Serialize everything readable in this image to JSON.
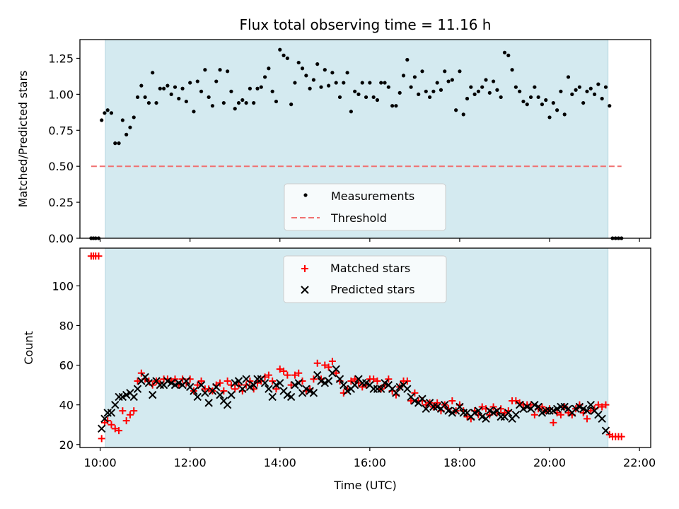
{
  "chart_data": [
    {
      "type": "scatter",
      "title": "Flux total observing time = 11.16 h",
      "xlabel": "",
      "ylabel": "Matched/Predicted stars",
      "xlim": [
        "09:33",
        "22:15"
      ],
      "ylim": [
        0,
        1.38
      ],
      "grid": false,
      "legend_position": "lower-center",
      "y_ticks": [
        "0.00",
        "0.25",
        "0.50",
        "0.75",
        "1.00",
        "1.25"
      ],
      "x_ticks": [
        "10:00",
        "12:00",
        "14:00",
        "16:00",
        "18:00",
        "20:00",
        "22:00"
      ],
      "shaded_span": [
        "10:07",
        "21:18"
      ],
      "shaded_color": "#d4eaf0",
      "series": [
        {
          "name": "Measurements",
          "color": "#000000",
          "marker": "dot",
          "x": [
            "09:48",
            "09:51",
            "09:54",
            "09:58",
            "10:02",
            "10:06",
            "10:10",
            "10:15",
            "10:20",
            "10:25",
            "10:30",
            "10:35",
            "10:40",
            "10:45",
            "10:50",
            "10:55",
            "11:00",
            "11:05",
            "11:10",
            "11:15",
            "11:20",
            "11:25",
            "11:30",
            "11:35",
            "11:40",
            "11:45",
            "11:50",
            "11:55",
            "12:00",
            "12:05",
            "12:10",
            "12:15",
            "12:20",
            "12:25",
            "12:30",
            "12:35",
            "12:40",
            "12:45",
            "12:50",
            "12:55",
            "13:00",
            "13:05",
            "13:10",
            "13:15",
            "13:20",
            "13:25",
            "13:30",
            "13:35",
            "13:40",
            "13:45",
            "13:50",
            "13:55",
            "14:00",
            "14:05",
            "14:10",
            "14:15",
            "14:20",
            "14:25",
            "14:30",
            "14:35",
            "14:40",
            "14:45",
            "14:50",
            "14:55",
            "15:00",
            "15:05",
            "15:10",
            "15:15",
            "15:20",
            "15:25",
            "15:30",
            "15:35",
            "15:40",
            "15:45",
            "15:50",
            "15:55",
            "16:00",
            "16:05",
            "16:10",
            "16:15",
            "16:20",
            "16:25",
            "16:30",
            "16:35",
            "16:40",
            "16:45",
            "16:50",
            "16:55",
            "17:00",
            "17:05",
            "17:10",
            "17:15",
            "17:20",
            "17:25",
            "17:30",
            "17:35",
            "17:40",
            "17:45",
            "17:50",
            "17:55",
            "18:00",
            "18:05",
            "18:10",
            "18:15",
            "18:20",
            "18:25",
            "18:30",
            "18:35",
            "18:40",
            "18:45",
            "18:50",
            "18:55",
            "19:00",
            "19:05",
            "19:10",
            "19:15",
            "19:20",
            "19:25",
            "19:30",
            "19:35",
            "19:40",
            "19:45",
            "19:50",
            "19:55",
            "20:00",
            "20:05",
            "20:10",
            "20:15",
            "20:20",
            "20:25",
            "20:30",
            "20:35",
            "20:40",
            "20:45",
            "20:50",
            "20:55",
            "21:00",
            "21:05",
            "21:10",
            "21:15",
            "21:20",
            "21:24",
            "21:28",
            "21:32",
            "21:36"
          ],
          "y": [
            0,
            0,
            0,
            0,
            0.82,
            0.87,
            0.89,
            0.87,
            0.66,
            0.66,
            0.82,
            0.72,
            0.77,
            0.84,
            0.98,
            1.06,
            0.98,
            0.94,
            1.15,
            0.94,
            1.04,
            1.04,
            1.06,
            1.0,
            1.05,
            0.97,
            1.04,
            0.95,
            1.08,
            0.88,
            1.09,
            1.02,
            1.17,
            0.98,
            0.92,
            1.09,
            1.17,
            0.94,
            1.16,
            1.02,
            0.9,
            0.94,
            0.96,
            0.94,
            1.04,
            0.94,
            1.04,
            1.05,
            1.12,
            1.18,
            1.02,
            0.95,
            1.31,
            1.27,
            1.25,
            0.93,
            1.08,
            1.22,
            1.18,
            1.13,
            1.04,
            1.1,
            1.21,
            1.05,
            1.17,
            1.06,
            1.15,
            1.08,
            0.98,
            1.08,
            1.15,
            0.88,
            1.02,
            1.0,
            1.08,
            0.98,
            1.08,
            0.98,
            0.96,
            1.08,
            1.08,
            1.05,
            0.92,
            0.92,
            1.01,
            1.13,
            1.24,
            1.05,
            1.12,
            1.0,
            1.16,
            1.02,
            0.98,
            1.02,
            1.08,
            1.03,
            1.16,
            1.09,
            1.1,
            0.89,
            1.16,
            0.86,
            0.97,
            1.05,
            1.0,
            1.02,
            1.05,
            1.1,
            1.01,
            1.09,
            1.03,
            0.98,
            1.29,
            1.27,
            1.17,
            1.05,
            1.02,
            0.95,
            0.93,
            0.98,
            1.05,
            0.98,
            0.93,
            0.96,
            0.84,
            0.94,
            0.89,
            1.02,
            0.86,
            1.12,
            1.0,
            1.03,
            1.05,
            0.94,
            1.02,
            1.04,
            1.0,
            1.07,
            0.97,
            1.05,
            0.92,
            0,
            0,
            0,
            0
          ]
        },
        {
          "name": "Threshold",
          "color": "#f07070",
          "style": "dashed",
          "x": [
            "09:48",
            "21:36"
          ],
          "y": [
            0.5,
            0.5
          ]
        }
      ]
    },
    {
      "type": "scatter",
      "title": "",
      "xlabel": "Time (UTC)",
      "ylabel": "Count",
      "xlim": [
        "09:33",
        "22:15"
      ],
      "ylim": [
        18.5,
        119
      ],
      "grid": false,
      "legend_position": "top-center",
      "y_ticks": [
        "20",
        "40",
        "60",
        "80",
        "100"
      ],
      "x_ticks": [
        "10:00",
        "12:00",
        "14:00",
        "16:00",
        "18:00",
        "20:00",
        "22:00"
      ],
      "shaded_span": [
        "10:07",
        "21:18"
      ],
      "shaded_color": "#d4eaf0",
      "series": [
        {
          "name": "Matched stars",
          "color": "#ff0000",
          "marker": "plus",
          "x": [
            "09:48",
            "09:51",
            "09:54",
            "09:58",
            "10:02",
            "10:06",
            "10:10",
            "10:15",
            "10:20",
            "10:25",
            "10:30",
            "10:35",
            "10:40",
            "10:45",
            "10:50",
            "10:55",
            "11:00",
            "11:05",
            "11:10",
            "11:15",
            "11:20",
            "11:25",
            "11:30",
            "11:35",
            "11:40",
            "11:45",
            "11:50",
            "11:55",
            "12:00",
            "12:05",
            "12:10",
            "12:15",
            "12:20",
            "12:25",
            "12:30",
            "12:35",
            "12:40",
            "12:45",
            "12:50",
            "12:55",
            "13:00",
            "13:05",
            "13:10",
            "13:15",
            "13:20",
            "13:25",
            "13:30",
            "13:35",
            "13:40",
            "13:45",
            "13:50",
            "13:55",
            "14:00",
            "14:05",
            "14:10",
            "14:15",
            "14:20",
            "14:25",
            "14:30",
            "14:35",
            "14:40",
            "14:45",
            "14:50",
            "14:55",
            "15:00",
            "15:05",
            "15:10",
            "15:15",
            "15:20",
            "15:25",
            "15:30",
            "15:35",
            "15:40",
            "15:45",
            "15:50",
            "15:55",
            "16:00",
            "16:05",
            "16:10",
            "16:15",
            "16:20",
            "16:25",
            "16:30",
            "16:35",
            "16:40",
            "16:45",
            "16:50",
            "16:55",
            "17:00",
            "17:05",
            "17:10",
            "17:15",
            "17:20",
            "17:25",
            "17:30",
            "17:35",
            "17:40",
            "17:45",
            "17:50",
            "17:55",
            "18:00",
            "18:05",
            "18:10",
            "18:15",
            "18:20",
            "18:25",
            "18:30",
            "18:35",
            "18:40",
            "18:45",
            "18:50",
            "18:55",
            "19:00",
            "19:05",
            "19:10",
            "19:15",
            "19:20",
            "19:25",
            "19:30",
            "19:35",
            "19:40",
            "19:45",
            "19:50",
            "19:55",
            "20:00",
            "20:05",
            "20:10",
            "20:15",
            "20:20",
            "20:25",
            "20:30",
            "20:35",
            "20:40",
            "20:45",
            "20:50",
            "20:55",
            "21:00",
            "21:05",
            "21:10",
            "21:15",
            "21:20",
            "21:24",
            "21:28",
            "21:32",
            "21:36"
          ],
          "y": [
            115,
            115,
            115,
            115,
            23,
            31,
            32,
            30,
            28,
            27,
            37,
            32,
            35,
            37,
            52,
            56,
            53,
            52,
            50,
            52,
            51,
            53,
            53,
            52,
            53,
            50,
            53,
            51,
            53,
            47,
            50,
            52,
            48,
            48,
            47,
            50,
            51,
            47,
            52,
            50,
            48,
            50,
            47,
            50,
            52,
            48,
            51,
            52,
            54,
            55,
            52,
            48,
            58,
            57,
            55,
            50,
            55,
            56,
            52,
            47,
            48,
            53,
            61,
            53,
            60,
            59,
            62,
            56,
            52,
            46,
            48,
            52,
            53,
            51,
            49,
            50,
            53,
            53,
            52,
            48,
            50,
            53,
            47,
            45,
            49,
            52,
            52,
            42,
            46,
            42,
            42,
            40,
            41,
            39,
            41,
            37,
            40,
            38,
            42,
            37,
            40,
            37,
            34,
            33,
            37,
            35,
            39,
            38,
            35,
            39,
            36,
            38,
            36,
            37,
            42,
            42,
            41,
            40,
            40,
            40,
            35,
            38,
            39,
            37,
            38,
            31,
            36,
            35,
            39,
            36,
            35,
            38,
            40,
            36,
            33,
            37,
            38,
            40,
            39,
            40,
            25,
            24,
            24,
            24,
            24
          ]
        },
        {
          "name": "Predicted stars",
          "color": "#000000",
          "marker": "cross",
          "x": [
            "10:02",
            "10:06",
            "10:10",
            "10:15",
            "10:20",
            "10:25",
            "10:30",
            "10:35",
            "10:40",
            "10:45",
            "10:50",
            "10:55",
            "11:00",
            "11:05",
            "11:10",
            "11:15",
            "11:20",
            "11:25",
            "11:30",
            "11:35",
            "11:40",
            "11:45",
            "11:50",
            "11:55",
            "12:00",
            "12:05",
            "12:10",
            "12:15",
            "12:20",
            "12:25",
            "12:30",
            "12:35",
            "12:40",
            "12:45",
            "12:50",
            "12:55",
            "13:00",
            "13:05",
            "13:10",
            "13:15",
            "13:20",
            "13:25",
            "13:30",
            "13:35",
            "13:40",
            "13:45",
            "13:50",
            "13:55",
            "14:00",
            "14:05",
            "14:10",
            "14:15",
            "14:20",
            "14:25",
            "14:30",
            "14:35",
            "14:40",
            "14:45",
            "14:50",
            "14:55",
            "15:00",
            "15:05",
            "15:10",
            "15:15",
            "15:20",
            "15:25",
            "15:30",
            "15:35",
            "15:40",
            "15:45",
            "15:50",
            "15:55",
            "16:00",
            "16:05",
            "16:10",
            "16:15",
            "16:20",
            "16:25",
            "16:30",
            "16:35",
            "16:40",
            "16:45",
            "16:50",
            "16:55",
            "17:00",
            "17:05",
            "17:10",
            "17:15",
            "17:20",
            "17:25",
            "17:30",
            "17:35",
            "17:40",
            "17:45",
            "17:50",
            "17:55",
            "18:00",
            "18:05",
            "18:10",
            "18:15",
            "18:20",
            "18:25",
            "18:30",
            "18:35",
            "18:40",
            "18:45",
            "18:50",
            "18:55",
            "19:00",
            "19:05",
            "19:10",
            "19:15",
            "19:20",
            "19:25",
            "19:30",
            "19:35",
            "19:40",
            "19:45",
            "19:50",
            "19:55",
            "20:00",
            "20:05",
            "20:10",
            "20:15",
            "20:20",
            "20:25",
            "20:30",
            "20:35",
            "20:40",
            "20:45",
            "20:50",
            "20:55",
            "21:00",
            "21:05",
            "21:10",
            "21:15"
          ],
          "y": [
            28,
            33,
            36,
            36,
            40,
            44,
            44,
            45,
            46,
            44,
            48,
            52,
            54,
            51,
            45,
            52,
            50,
            50,
            52,
            51,
            50,
            51,
            50,
            52,
            49,
            47,
            44,
            50,
            46,
            41,
            47,
            49,
            45,
            42,
            40,
            45,
            51,
            52,
            48,
            53,
            49,
            50,
            53,
            53,
            51,
            48,
            44,
            50,
            51,
            47,
            45,
            44,
            50,
            51,
            46,
            48,
            47,
            46,
            55,
            52,
            51,
            52,
            56,
            58,
            53,
            50,
            47,
            48,
            50,
            53,
            51,
            51,
            50,
            48,
            48,
            48,
            51,
            50,
            48,
            46,
            49,
            50,
            48,
            44,
            42,
            41,
            43,
            38,
            41,
            39,
            39,
            38,
            40,
            37,
            36,
            37,
            39,
            36,
            36,
            34,
            36,
            37,
            34,
            33,
            37,
            36,
            37,
            34,
            34,
            36,
            33,
            35,
            40,
            38,
            39,
            38,
            40,
            39,
            36,
            37,
            37,
            37,
            38,
            39,
            39,
            38,
            36,
            38,
            39,
            38,
            37,
            40,
            37,
            35,
            33,
            27
          ]
        }
      ]
    }
  ]
}
